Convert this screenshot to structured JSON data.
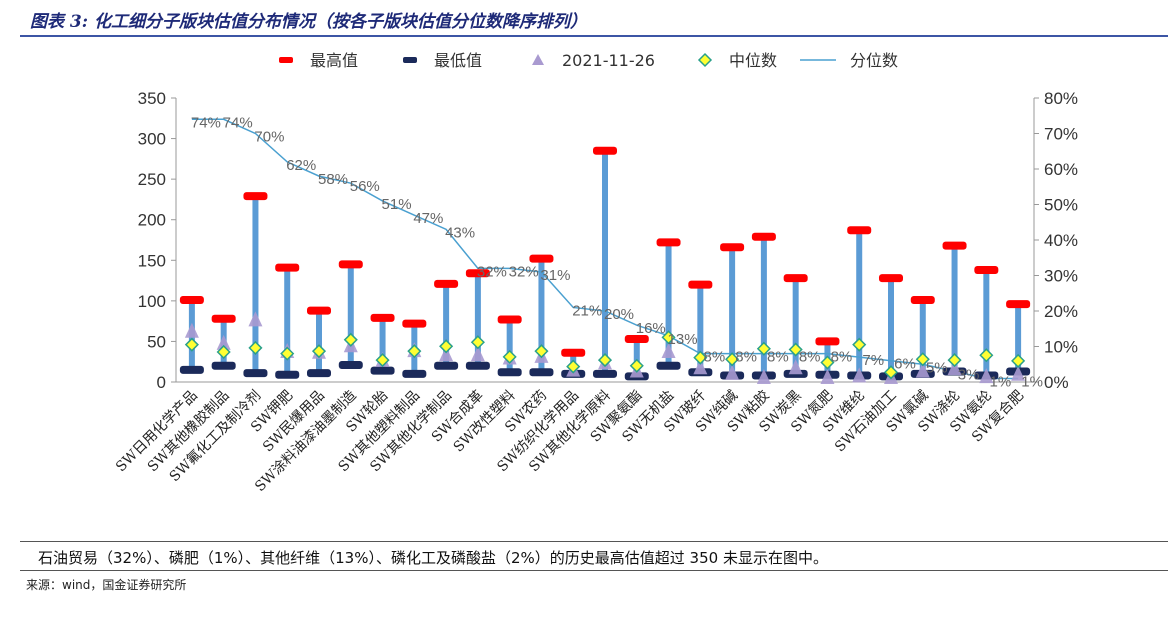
{
  "header": {
    "title": "图表 3: 化工细分子版块估值分布情况（按各子版块估值分位数降序排列）"
  },
  "footer": {
    "note": "石油贸易（32%）、磷肥（1%）、其他纤维（13%）、磷化工及磷酸盐（2%）的历史最高估值超过 350 未显示在图中。",
    "source": "来源：wind，国金证券研究所"
  },
  "colors": {
    "max": "#ff0000",
    "min": "#1b2a5a",
    "current": "#a99ad0",
    "median": "#ffff33",
    "median_border": "#2aa08a",
    "percentile": "#4aa0d0",
    "range_bar": "#5b9bd5"
  },
  "chart_data": {
    "type": "bar",
    "categories": [
      "SW日用化学产品",
      "SW其他橡胶制品",
      "SW氟化工及制冷剂",
      "SW钾肥",
      "SW民爆用品",
      "SW涂料油漆油墨制造",
      "SW轮胎",
      "SW其他塑料制品",
      "SW其他化学制品",
      "SW合成革",
      "SW改性塑料",
      "SW农药",
      "SW纺织化学用品",
      "SW其他化学原料",
      "SW聚氨酯",
      "SW无机盐",
      "SW玻纤",
      "SW纯碱",
      "SW粘胶",
      "SW炭黑",
      "SW氮肥",
      "SW维纶",
      "SW石油加工",
      "SW氯碱",
      "SW涤纶",
      "SW氨纶",
      "SW复合肥"
    ],
    "series": [
      {
        "name": "最高值",
        "marker": "dash",
        "values": [
          101,
          78,
          229,
          141,
          88,
          145,
          79,
          72,
          121,
          134,
          77,
          152,
          36,
          285,
          53,
          172,
          120,
          166,
          179,
          128,
          50,
          187,
          128,
          101,
          168,
          138,
          96
        ]
      },
      {
        "name": "最低值",
        "marker": "dash",
        "values": [
          15,
          20,
          11,
          9,
          11,
          21,
          14,
          10,
          20,
          20,
          12,
          12,
          10,
          10,
          7,
          20,
          12,
          8,
          8,
          10,
          9,
          8,
          7,
          10,
          13,
          8,
          13
        ]
      },
      {
        "name": "2021-11-26",
        "marker": "triangle",
        "values": [
          62,
          47,
          76,
          37,
          36,
          44,
          26,
          38,
          33,
          33,
          29,
          31,
          14,
          23,
          13,
          37,
          17,
          10,
          5,
          17,
          5,
          7,
          5,
          13,
          16,
          6,
          9
        ]
      },
      {
        "name": "中位数",
        "marker": "diamond",
        "values": [
          46,
          37,
          42,
          35,
          38,
          52,
          27,
          38,
          44,
          49,
          31,
          38,
          19,
          27,
          20,
          55,
          30,
          28,
          41,
          40,
          24,
          46,
          12,
          28,
          27,
          33,
          26
        ]
      },
      {
        "name": "分位数",
        "marker": "line",
        "axis": "right",
        "values": [
          74,
          74,
          70,
          62,
          58,
          56,
          51,
          47,
          43,
          32,
          32,
          31,
          21,
          20,
          16,
          13,
          8,
          8,
          8,
          8,
          8,
          7,
          6,
          5,
          3,
          1,
          1
        ]
      }
    ],
    "percentile_labels": [
      "74%",
      "74%",
      "70%",
      "62%",
      "58%",
      "56%",
      "51%",
      "47%",
      "43%",
      "32%",
      "32%",
      "31%",
      "21%",
      "20%",
      "16%",
      "13%",
      "8%",
      "8%",
      "8%",
      "8%",
      "8%",
      "7%",
      "6%",
      "5%",
      "3%",
      "1%",
      "1%"
    ],
    "ylim": [
      0,
      350
    ],
    "yticks": [
      0,
      50,
      100,
      150,
      200,
      250,
      300,
      350
    ],
    "y2lim": [
      0,
      80
    ],
    "y2ticks": [
      "0%",
      "10%",
      "20%",
      "30%",
      "40%",
      "50%",
      "60%",
      "70%",
      "80%"
    ],
    "legend": "top",
    "grid": false
  }
}
